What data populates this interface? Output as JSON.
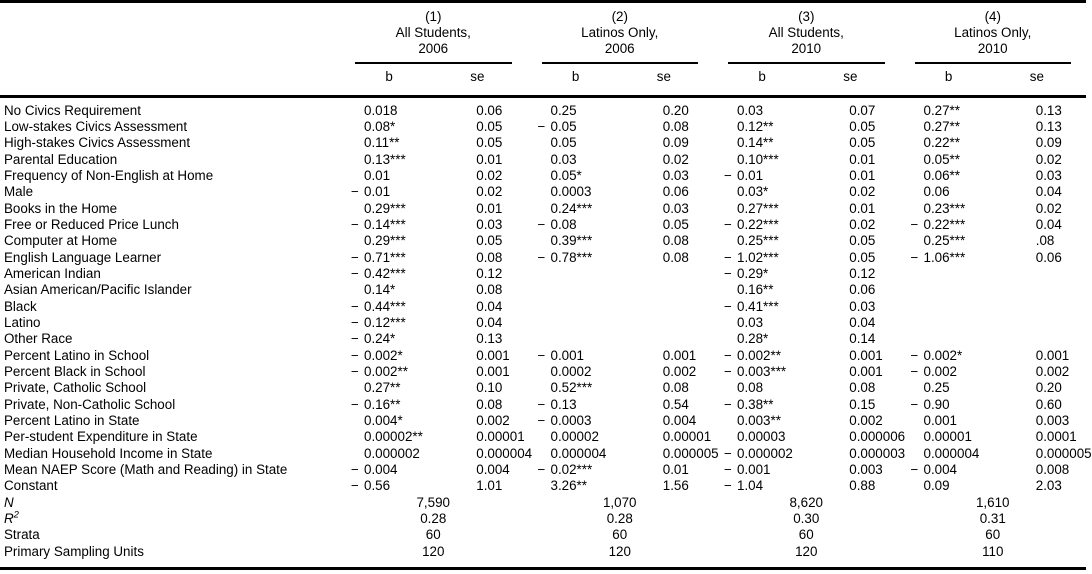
{
  "table": {
    "column_groups": [
      {
        "number": "(1)",
        "population": "All Students,",
        "year": "2006"
      },
      {
        "number": "(2)",
        "population": "Latinos Only,",
        "year": "2006"
      },
      {
        "number": "(3)",
        "population": "All Students,",
        "year": "2010"
      },
      {
        "number": "(4)",
        "population": "Latinos Only,",
        "year": "2010"
      }
    ],
    "sub_headers": {
      "coefficient": "b",
      "standard_error": "se"
    },
    "rows": [
      {
        "label": "No Civics Requirement",
        "values": [
          "0.018",
          "0.06",
          "0.25",
          "0.20",
          "0.03",
          "0.07",
          "0.27**",
          "0.13"
        ]
      },
      {
        "label": "Low-stakes Civics Assessment",
        "values": [
          "0.08*",
          "0.05",
          "−0.05",
          "0.08",
          "0.12**",
          "0.05",
          "0.27**",
          "0.13"
        ]
      },
      {
        "label": "High-stakes Civics Assessment",
        "values": [
          "0.11**",
          "0.05",
          "0.05",
          "0.09",
          "0.14**",
          "0.05",
          "0.22**",
          "0.09"
        ]
      },
      {
        "label": "Parental Education",
        "values": [
          "0.13***",
          "0.01",
          "0.03",
          "0.02",
          "0.10***",
          "0.01",
          "0.05**",
          "0.02"
        ]
      },
      {
        "label": "Frequency of Non-English at Home",
        "values": [
          "0.01",
          "0.02",
          "0.05*",
          "0.03",
          "−0.01",
          "0.01",
          "0.06**",
          "0.03"
        ]
      },
      {
        "label": "Male",
        "values": [
          "−0.01",
          "0.02",
          "0.0003",
          "0.06",
          "0.03*",
          "0.02",
          "0.06",
          "0.04"
        ]
      },
      {
        "label": "Books in the Home",
        "values": [
          "0.29***",
          "0.01",
          "0.24***",
          "0.03",
          "0.27***",
          "0.01",
          "0.23***",
          "0.02"
        ]
      },
      {
        "label": "Free or Reduced Price Lunch",
        "values": [
          "−0.14***",
          "0.03",
          "−0.08",
          "0.05",
          "−0.22***",
          "0.02",
          "−0.22***",
          "0.04"
        ]
      },
      {
        "label": "Computer at Home",
        "values": [
          "0.29***",
          "0.05",
          "0.39***",
          "0.08",
          "0.25***",
          "0.05",
          "0.25***",
          ".08"
        ]
      },
      {
        "label": "English Language Learner",
        "values": [
          "−0.71***",
          "0.08",
          "−0.78***",
          "0.08",
          "−1.02***",
          "0.05",
          "−1.06***",
          "0.06"
        ]
      },
      {
        "label": "American Indian",
        "values": [
          "−0.42***",
          "0.12",
          "",
          "",
          "−0.29*",
          "0.12",
          "",
          ""
        ]
      },
      {
        "label": "Asian American/Pacific Islander",
        "values": [
          "0.14*",
          "0.08",
          "",
          "",
          "0.16**",
          "0.06",
          "",
          ""
        ]
      },
      {
        "label": "Black",
        "values": [
          "−0.44***",
          "0.04",
          "",
          "",
          "−0.41***",
          "0.03",
          "",
          ""
        ]
      },
      {
        "label": "Latino",
        "values": [
          "−0.12***",
          "0.04",
          "",
          "",
          "0.03",
          "0.04",
          "",
          ""
        ]
      },
      {
        "label": "Other Race",
        "values": [
          "−0.24*",
          "0.13",
          "",
          "",
          "0.28*",
          "0.14",
          "",
          ""
        ]
      },
      {
        "label": "Percent Latino in School",
        "values": [
          "−0.002*",
          "0.001",
          "−0.001",
          "0.001",
          "−0.002**",
          "0.001",
          "−0.002*",
          "0.001"
        ]
      },
      {
        "label": "Percent Black in School",
        "values": [
          "−0.002**",
          "0.001",
          "0.0002",
          "0.002",
          "−0.003***",
          "0.001",
          "−0.002",
          "0.002"
        ]
      },
      {
        "label": "Private, Catholic School",
        "values": [
          "0.27**",
          "0.10",
          "0.52***",
          "0.08",
          "0.08",
          "0.08",
          "0.25",
          "0.20"
        ]
      },
      {
        "label": "Private, Non-Catholic School",
        "values": [
          "−0.16**",
          "0.08",
          "−0.13",
          "0.54",
          "−0.38**",
          "0.15",
          "−0.90",
          "0.60"
        ]
      },
      {
        "label": "Percent Latino in State",
        "values": [
          "0.004*",
          "0.002",
          "−0.0003",
          "0.004",
          "0.003**",
          "0.002",
          "0.001",
          "0.003"
        ]
      },
      {
        "label": "Per-student Expenditure in State",
        "values": [
          "0.00002**",
          "0.00001",
          "0.00002",
          "0.00001",
          "0.00003",
          "0.000006",
          "0.00001",
          "0.0001"
        ]
      },
      {
        "label": "Median Household Income in State",
        "values": [
          "0.000002",
          "0.000004",
          "0.000004",
          "0.000005",
          "−0.000002",
          "0.000003",
          "0.000004",
          "0.000005"
        ]
      },
      {
        "label": "Mean NAEP Score (Math and Reading) in State",
        "values": [
          "−0.004",
          "0.004",
          "−0.02***",
          "0.01",
          "−0.001",
          "0.003",
          "−0.004",
          "0.008"
        ]
      },
      {
        "label": "Constant",
        "values": [
          "−0.56",
          "1.01",
          "3.26**",
          "1.56",
          "−1.04",
          "0.88",
          "0.09",
          "2.03"
        ]
      }
    ],
    "summary_rows": [
      {
        "label": "N",
        "italic": true,
        "values": [
          "7,590",
          "1,070",
          "8,620",
          "1,610"
        ]
      },
      {
        "label": "R",
        "superscript": "2",
        "italic": true,
        "values": [
          "0.28",
          "0.28",
          "0.30",
          "0.31"
        ]
      },
      {
        "label": "Strata",
        "values": [
          "60",
          "60",
          "60",
          "60"
        ]
      },
      {
        "label": "Primary Sampling Units",
        "values": [
          "120",
          "120",
          "120",
          "110"
        ]
      }
    ]
  }
}
